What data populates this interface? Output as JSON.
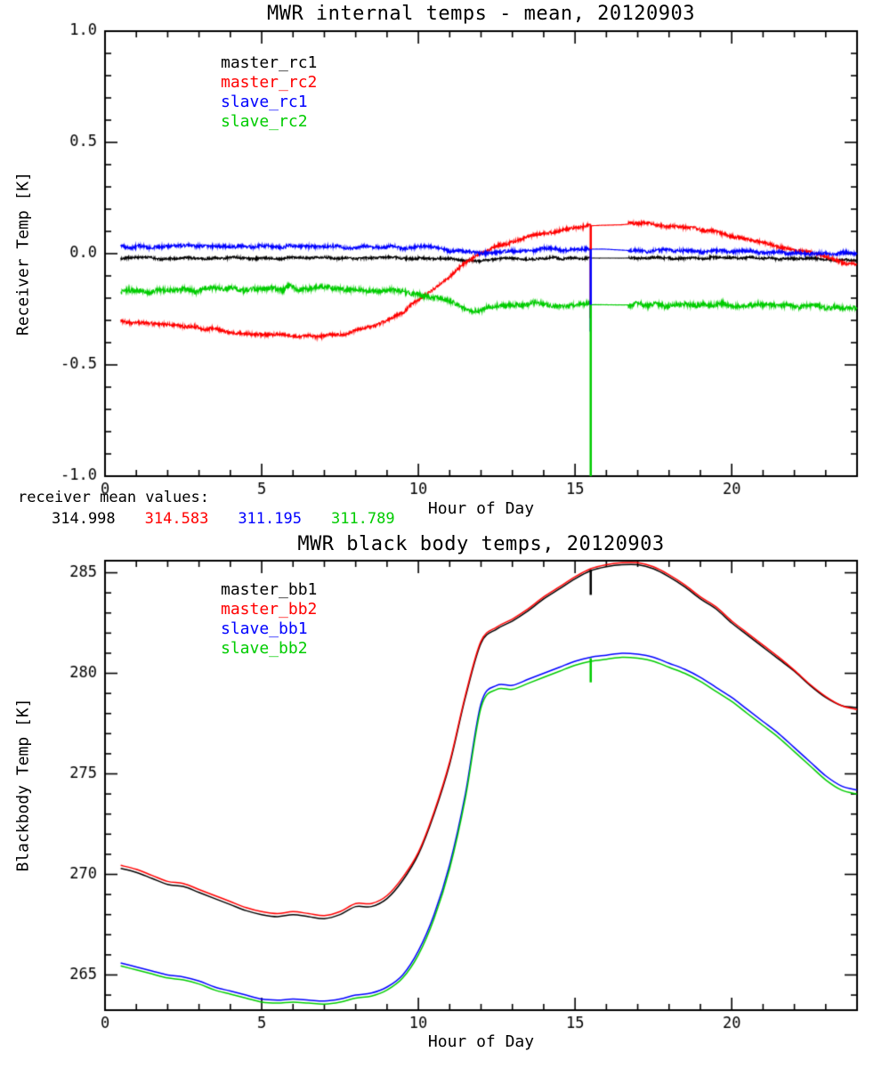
{
  "page": {
    "background": "#ffffff"
  },
  "colors": {
    "black": "#000000",
    "red": "#ff0000",
    "blue": "#0000ff",
    "green": "#00cc00"
  },
  "chart_data": [
    {
      "type": "line",
      "title": "MWR internal temps - mean, 20120903",
      "xlabel": "Hour of Day",
      "ylabel": "Receiver Temp [K]",
      "xlim": [
        0,
        24
      ],
      "ylim": [
        -1.0,
        1.0
      ],
      "xticks": [
        0,
        5,
        10,
        15,
        20
      ],
      "xtick_labels": [
        "0",
        "5",
        "10",
        "15",
        "20"
      ],
      "x_minor_step": 1,
      "yticks": [
        -1.0,
        -0.5,
        0.0,
        0.5,
        1.0
      ],
      "ytick_labels": [
        "-1.0",
        "-0.5",
        "0.0",
        "0.5",
        "1.0"
      ],
      "y_minor_step": 0.1,
      "grid": false,
      "legend_position": "upper-left-inside",
      "quiet_range": [
        15.5,
        16.7
      ],
      "x": [
        0.5,
        1,
        1.5,
        2,
        2.5,
        3,
        3.5,
        4,
        4.5,
        5,
        5.5,
        6,
        6.5,
        7,
        7.5,
        8,
        8.5,
        9,
        9.5,
        10,
        10.5,
        11,
        11.5,
        12,
        12.5,
        13,
        13.5,
        14,
        14.5,
        15,
        15.5,
        16,
        16.5,
        17,
        17.5,
        18,
        18.5,
        19,
        19.5,
        20,
        20.5,
        21,
        21.5,
        22,
        22.5,
        23,
        23.5,
        24
      ],
      "series": [
        {
          "name": "master_rc1",
          "color": "#000000",
          "noise": 0.005,
          "values": [
            -0.02,
            -0.02,
            -0.02,
            -0.02,
            -0.02,
            -0.02,
            -0.02,
            -0.02,
            -0.02,
            -0.02,
            -0.02,
            -0.02,
            -0.02,
            -0.02,
            -0.02,
            -0.02,
            -0.02,
            -0.02,
            -0.02,
            -0.02,
            -0.022,
            -0.025,
            -0.03,
            -0.03,
            -0.028,
            -0.024,
            -0.022,
            -0.02,
            -0.02,
            -0.02,
            -0.02,
            -0.02,
            -0.02,
            -0.02,
            -0.02,
            -0.02,
            -0.02,
            -0.02,
            -0.02,
            -0.02,
            -0.021,
            -0.022,
            -0.023,
            -0.024,
            -0.025,
            -0.026,
            -0.028,
            -0.03
          ]
        },
        {
          "name": "master_rc2",
          "color": "#ff0000",
          "noise": 0.007,
          "values": [
            -0.3,
            -0.31,
            -0.315,
            -0.32,
            -0.33,
            -0.335,
            -0.34,
            -0.35,
            -0.355,
            -0.36,
            -0.365,
            -0.37,
            -0.37,
            -0.37,
            -0.365,
            -0.35,
            -0.33,
            -0.3,
            -0.26,
            -0.21,
            -0.16,
            -0.1,
            -0.045,
            0.0,
            0.03,
            0.055,
            0.075,
            0.09,
            0.105,
            0.115,
            0.125,
            0.128,
            0.13,
            0.135,
            0.132,
            0.125,
            0.117,
            0.107,
            0.095,
            0.08,
            0.065,
            0.05,
            0.035,
            0.018,
            0.002,
            -0.015,
            -0.035,
            -0.055
          ]
        },
        {
          "name": "slave_rc1",
          "color": "#0000ff",
          "noise": 0.007,
          "values": [
            0.03,
            0.03,
            0.03,
            0.03,
            0.03,
            0.03,
            0.03,
            0.03,
            0.03,
            0.03,
            0.03,
            0.03,
            0.03,
            0.03,
            0.03,
            0.03,
            0.03,
            0.03,
            0.028,
            0.028,
            0.025,
            0.015,
            0.005,
            0.0,
            0.005,
            0.014,
            0.018,
            0.02,
            0.02,
            0.02,
            0.02,
            0.02,
            0.016,
            0.012,
            0.012,
            0.014,
            0.012,
            0.01,
            0.01,
            0.01,
            0.008,
            0.005,
            0.003,
            0.001,
            0.0,
            0.0,
            0.0,
            0.0
          ]
        },
        {
          "name": "slave_rc2",
          "color": "#00cc00",
          "noise": 0.01,
          "values": [
            -0.17,
            -0.17,
            -0.168,
            -0.165,
            -0.165,
            -0.163,
            -0.162,
            -0.16,
            -0.16,
            -0.158,
            -0.156,
            -0.155,
            -0.155,
            -0.158,
            -0.158,
            -0.16,
            -0.162,
            -0.165,
            -0.17,
            -0.18,
            -0.198,
            -0.22,
            -0.248,
            -0.255,
            -0.24,
            -0.23,
            -0.226,
            -0.226,
            -0.228,
            -0.23,
            -0.23,
            -0.23,
            -0.23,
            -0.23,
            -0.23,
            -0.23,
            -0.23,
            -0.23,
            -0.23,
            -0.232,
            -0.232,
            -0.234,
            -0.235,
            -0.236,
            -0.237,
            -0.238,
            -0.239,
            -0.24
          ]
        }
      ],
      "spikes": [
        {
          "x": 15.5,
          "from": 0.125,
          "to": -0.29,
          "color": "#ff0000"
        },
        {
          "x": 15.5,
          "from": 0.02,
          "to": -0.35,
          "color": "#0000ff"
        },
        {
          "x": 15.5,
          "from": -0.23,
          "to": -1.0,
          "color": "#00cc00"
        }
      ],
      "footnote": {
        "label": "receiver mean values:",
        "values": [
          {
            "text": "314.998",
            "color": "#000000"
          },
          {
            "text": "314.583",
            "color": "#ff0000"
          },
          {
            "text": "311.195",
            "color": "#0000ff"
          },
          {
            "text": "311.789",
            "color": "#00cc00"
          }
        ]
      }
    },
    {
      "type": "line",
      "title": "MWR black body temps, 20120903",
      "xlabel": "Hour of Day",
      "ylabel": "Blackbody Temp [K]",
      "xlim": [
        0,
        24
      ],
      "ylim": [
        263.25,
        285.6
      ],
      "xticks": [
        0,
        5,
        10,
        15,
        20
      ],
      "xtick_labels": [
        "0",
        "5",
        "10",
        "15",
        "20"
      ],
      "x_minor_step": 1,
      "yticks": [
        265,
        270,
        275,
        280,
        285
      ],
      "ytick_labels": [
        "265",
        "270",
        "275",
        "280",
        "285"
      ],
      "y_minor_step": 1,
      "grid": false,
      "legend_position": "upper-left-inside",
      "x": [
        0.5,
        1,
        1.5,
        2,
        2.5,
        3,
        3.5,
        4,
        4.5,
        5,
        5.5,
        6,
        6.5,
        7,
        7.5,
        8,
        8.5,
        9,
        9.5,
        10,
        10.5,
        11,
        11.5,
        12,
        12.5,
        13,
        13.5,
        14,
        14.5,
        15,
        15.5,
        16,
        16.5,
        17,
        17.5,
        18,
        18.5,
        19,
        19.5,
        20,
        20.5,
        21,
        21.5,
        22,
        22.5,
        23,
        23.5,
        24
      ],
      "series": [
        {
          "name": "master_bb1",
          "color": "#000000",
          "noise": 0,
          "values": [
            270.3,
            270.1,
            269.8,
            269.5,
            269.4,
            269.1,
            268.8,
            268.5,
            268.2,
            268.0,
            267.9,
            268.0,
            267.9,
            267.8,
            268.0,
            268.4,
            268.4,
            268.8,
            269.7,
            271.0,
            273.0,
            275.5,
            278.8,
            281.5,
            282.2,
            282.6,
            283.1,
            283.7,
            284.2,
            284.7,
            285.1,
            285.3,
            285.4,
            285.4,
            285.2,
            284.8,
            284.3,
            283.7,
            283.2,
            282.5,
            281.9,
            281.3,
            280.7,
            280.1,
            279.4,
            278.8,
            278.4,
            278.3
          ]
        },
        {
          "name": "master_bb2",
          "color": "#ff0000",
          "noise": 0,
          "values": [
            270.45,
            270.25,
            269.95,
            269.65,
            269.55,
            269.25,
            268.95,
            268.65,
            268.35,
            268.15,
            268.05,
            268.15,
            268.05,
            267.95,
            268.15,
            268.55,
            268.55,
            268.95,
            269.85,
            271.1,
            273.1,
            275.6,
            278.9,
            281.6,
            282.3,
            282.7,
            283.2,
            283.8,
            284.3,
            284.8,
            285.2,
            285.4,
            285.5,
            285.5,
            285.3,
            284.9,
            284.4,
            283.8,
            283.3,
            282.6,
            282.0,
            281.4,
            280.8,
            280.15,
            279.45,
            278.85,
            278.4,
            278.2
          ]
        },
        {
          "name": "slave_bb1",
          "color": "#0000ff",
          "noise": 0,
          "values": [
            265.6,
            265.4,
            265.2,
            265.0,
            264.9,
            264.7,
            264.4,
            264.2,
            264.0,
            263.8,
            263.75,
            263.8,
            263.75,
            263.7,
            263.8,
            264.0,
            264.1,
            264.4,
            265.0,
            266.2,
            268.0,
            270.5,
            274.0,
            278.5,
            279.4,
            279.4,
            279.7,
            280.0,
            280.3,
            280.6,
            280.8,
            280.9,
            281.0,
            280.95,
            280.8,
            280.5,
            280.2,
            279.8,
            279.3,
            278.8,
            278.2,
            277.6,
            277.0,
            276.3,
            275.6,
            274.9,
            274.4,
            274.2
          ]
        },
        {
          "name": "slave_bb2",
          "color": "#00cc00",
          "noise": 0,
          "values": [
            265.45,
            265.25,
            265.05,
            264.85,
            264.75,
            264.55,
            264.25,
            264.05,
            263.85,
            263.65,
            263.6,
            263.65,
            263.6,
            263.55,
            263.65,
            263.85,
            263.95,
            264.25,
            264.85,
            266.0,
            267.8,
            270.3,
            273.8,
            278.3,
            279.2,
            279.2,
            279.5,
            279.8,
            280.1,
            280.4,
            280.6,
            280.7,
            280.8,
            280.75,
            280.6,
            280.3,
            280.0,
            279.6,
            279.1,
            278.6,
            278.0,
            277.4,
            276.8,
            276.1,
            275.4,
            274.7,
            274.2,
            274.0
          ]
        }
      ],
      "spikes": [
        {
          "x": 15.5,
          "from": 285.15,
          "to": 283.9,
          "color": "#000000"
        },
        {
          "x": 15.5,
          "from": 280.75,
          "to": 279.55,
          "color": "#00cc00"
        }
      ]
    }
  ]
}
